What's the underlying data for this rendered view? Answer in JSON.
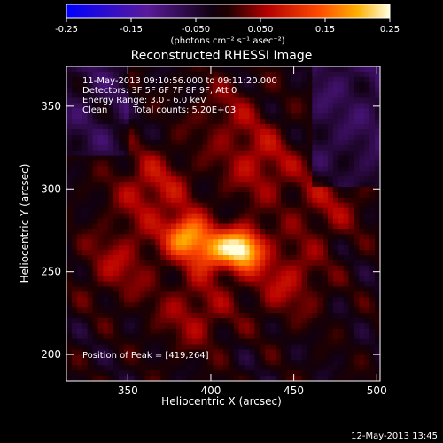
{
  "chart_data": {
    "type": "heatmap",
    "title": "Reconstructed RHESSI Image",
    "xlabel": "Heliocentric X (arcsec)",
    "ylabel": "Heliocentric Y (arcsec)",
    "xlim": [
      313,
      502
    ],
    "ylim": [
      184,
      374
    ],
    "xticks": [
      350,
      400,
      450,
      500
    ],
    "yticks": [
      200,
      250,
      300,
      350
    ],
    "colorbar": {
      "range": [
        -0.25,
        0.25
      ],
      "ticks": [
        "-0.25",
        "-0.15",
        "-0.050",
        "0.050",
        "0.15",
        "0.25"
      ],
      "units_label": "(photons cm⁻² s⁻¹ asec⁻²)",
      "colormap": "blue-purple-black-red-orange-yellow-white"
    },
    "info": {
      "time": "11-May-2013 09:10:56.000 to 09:11:20.000",
      "detectors": "Detectors: 3F 5F 6F 7F 8F 9F, Att 0",
      "energy": "Energy Range: 3.0 - 6.0 keV",
      "clean": "Clean",
      "total_counts": "Total counts: 5.20E+03"
    },
    "peak": {
      "label": "Position of Peak = [419,264]",
      "x": 419,
      "y": 264
    },
    "sources": [
      {
        "x": 419,
        "y": 264,
        "amp": 0.25
      },
      {
        "x": 385,
        "y": 272,
        "amp": 0.2
      },
      {
        "x": 400,
        "y": 262,
        "amp": 0.16
      },
      {
        "x": 365,
        "y": 300,
        "amp": 0.09
      },
      {
        "x": 430,
        "y": 315,
        "amp": 0.08
      },
      {
        "x": 345,
        "y": 255,
        "amp": 0.07
      },
      {
        "x": 445,
        "y": 245,
        "amp": 0.08
      },
      {
        "x": 390,
        "y": 225,
        "amp": 0.07
      },
      {
        "x": 470,
        "y": 290,
        "amp": 0.06
      },
      {
        "x": 410,
        "y": 345,
        "amp": 0.05
      }
    ]
  },
  "footer": {
    "timestamp": "12-May-2013 13:45"
  }
}
